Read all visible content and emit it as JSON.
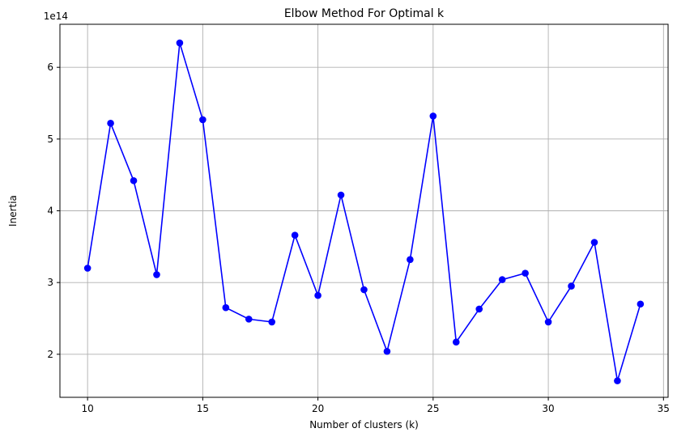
{
  "chart_data": {
    "type": "line",
    "title": "Elbow Method For Optimal k",
    "xlabel": "Number of clusters (k)",
    "ylabel": "Inertia",
    "y_offset_label": "1e14",
    "y_scale_factor": 100000000000000.0,
    "xlim": [
      8.8,
      35.2
    ],
    "ylim": [
      140000000000000.0,
      660000000000000.0
    ],
    "x_ticks": [
      10,
      15,
      20,
      25,
      30,
      35
    ],
    "y_ticks": [
      200000000000000.0,
      300000000000000.0,
      400000000000000.0,
      500000000000000.0,
      600000000000000.0
    ],
    "y_tick_labels": [
      "2",
      "3",
      "4",
      "5",
      "6"
    ],
    "grid": true,
    "series": [
      {
        "color": "#0000ff",
        "marker": "circle",
        "x": [
          10,
          11,
          12,
          13,
          14,
          15,
          16,
          17,
          18,
          19,
          20,
          21,
          22,
          23,
          24,
          25,
          26,
          27,
          28,
          29,
          30,
          31,
          32,
          33,
          34
        ],
        "y": [
          320000000000000.0,
          522000000000000.0,
          442000000000000.0,
          311000000000000.0,
          634000000000000.0,
          527000000000000.0,
          265000000000000.0,
          249000000000000.0,
          245000000000000.0,
          366000000000000.0,
          282000000000000.0,
          422000000000000.0,
          290000000000000.0,
          204000000000000.0,
          332000000000000.0,
          532000000000000.0,
          217000000000000.0,
          263000000000000.0,
          304000000000000.0,
          313000000000000.0,
          245000000000000.0,
          295000000000000.0,
          356000000000000.0,
          163000000000000.0,
          270000000000000.0
        ]
      }
    ]
  }
}
